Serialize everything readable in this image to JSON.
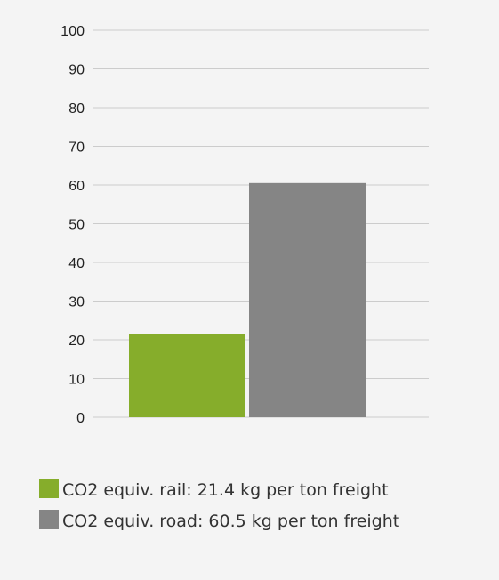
{
  "chart_data": {
    "type": "bar",
    "categories": [
      "rail",
      "road"
    ],
    "values": [
      21.4,
      60.5
    ],
    "colors": [
      "#86ad2b",
      "#858585"
    ],
    "ylim": [
      0,
      100
    ],
    "yticks": [
      0,
      10,
      20,
      30,
      40,
      50,
      60,
      70,
      80,
      90,
      100
    ],
    "grid": true,
    "legend_position": "bottom",
    "legend": [
      {
        "label": "CO2 equiv. rail: 21.4 kg per ton freight",
        "color": "#86ad2b"
      },
      {
        "label": "CO2 equiv. road: 60.5 kg per ton freight",
        "color": "#858585"
      }
    ]
  },
  "colors": {
    "grid": "#cccccc",
    "background": "#f4f4f4"
  }
}
